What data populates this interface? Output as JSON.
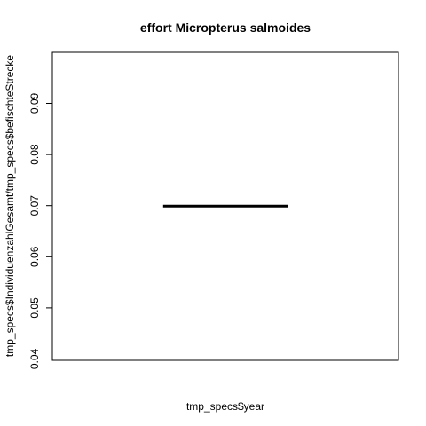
{
  "chart_data": {
    "type": "line",
    "title": "effort Micropterus salmoides",
    "xlabel": "tmp_specs$year",
    "ylabel": "tmp_specs$IndividuenzahlGesamt/tmp_specs$befischteStrecke",
    "ylim": [
      0.04,
      0.1
    ],
    "yticks": [
      0.04,
      0.05,
      0.06,
      0.07,
      0.08,
      0.09
    ],
    "xlim": [
      0,
      1
    ],
    "x_ticks_shown": false,
    "grid": false,
    "legend": "none",
    "series": [
      {
        "x": [
          0.32,
          0.68
        ],
        "values": [
          0.0699,
          0.0699
        ]
      }
    ],
    "line_color": "#000000"
  }
}
